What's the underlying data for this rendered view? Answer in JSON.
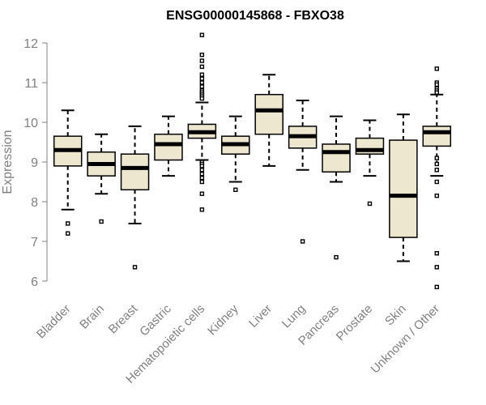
{
  "chart_data": {
    "type": "box",
    "title": "ENSG00000145868 - FBXO38",
    "xlabel": "",
    "ylabel": "Expression",
    "ylim": [
      5.8,
      12.3
    ],
    "yticks": [
      6,
      7,
      8,
      9,
      10,
      11,
      12
    ],
    "grid": false,
    "legend": "none",
    "box_fill": "#ede7cf",
    "outlier_color": "#000000",
    "categories": [
      "Bladder",
      "Brain",
      "Breast",
      "Gastric",
      "Hematopoietic cells",
      "Kidney",
      "Liver",
      "Lung",
      "Pancreas",
      "Prostate",
      "Skin",
      "Unknown / Other"
    ],
    "boxes": [
      {
        "category": "Bladder",
        "whisker_low": 7.8,
        "q1": 8.9,
        "median": 9.3,
        "q3": 9.65,
        "whisker_high": 10.3,
        "outliers": [
          7.45,
          7.2
        ]
      },
      {
        "category": "Brain",
        "whisker_low": 8.2,
        "q1": 8.65,
        "median": 8.95,
        "q3": 9.25,
        "whisker_high": 9.7,
        "outliers": [
          7.5
        ]
      },
      {
        "category": "Breast",
        "whisker_low": 7.45,
        "q1": 8.3,
        "median": 8.85,
        "q3": 9.2,
        "whisker_high": 9.9,
        "outliers": [
          6.35
        ]
      },
      {
        "category": "Gastric",
        "whisker_low": 8.65,
        "q1": 9.05,
        "median": 9.45,
        "q3": 9.7,
        "whisker_high": 10.15,
        "outliers": []
      },
      {
        "category": "Hematopoietic cells",
        "whisker_low": 9.05,
        "q1": 9.6,
        "median": 9.75,
        "q3": 9.95,
        "whisker_high": 10.5,
        "outliers": [
          12.2,
          11.7,
          11.55,
          11.4,
          11.2,
          11.1,
          11.0,
          10.9,
          10.8,
          10.75,
          10.7,
          10.65,
          10.6,
          9.0,
          8.95,
          8.9,
          8.8,
          8.7,
          8.6,
          8.5,
          8.2,
          7.8
        ]
      },
      {
        "category": "Kidney",
        "whisker_low": 8.5,
        "q1": 9.2,
        "median": 9.45,
        "q3": 9.65,
        "whisker_high": 10.15,
        "outliers": [
          8.3
        ]
      },
      {
        "category": "Liver",
        "whisker_low": 8.9,
        "q1": 9.7,
        "median": 10.3,
        "q3": 10.7,
        "whisker_high": 11.2,
        "outliers": []
      },
      {
        "category": "Lung",
        "whisker_low": 8.8,
        "q1": 9.35,
        "median": 9.65,
        "q3": 9.9,
        "whisker_high": 10.55,
        "outliers": [
          7.0
        ]
      },
      {
        "category": "Pancreas",
        "whisker_low": 8.5,
        "q1": 8.75,
        "median": 9.25,
        "q3": 9.45,
        "whisker_high": 10.15,
        "outliers": [
          6.6
        ]
      },
      {
        "category": "Prostate",
        "whisker_low": 8.65,
        "q1": 9.2,
        "median": 9.3,
        "q3": 9.6,
        "whisker_high": 10.05,
        "outliers": [
          7.95
        ]
      },
      {
        "category": "Skin",
        "whisker_low": 6.5,
        "q1": 7.1,
        "median": 8.15,
        "q3": 9.55,
        "whisker_high": 10.2,
        "outliers": []
      },
      {
        "category": "Unknown / Other",
        "whisker_low": 8.65,
        "q1": 9.4,
        "median": 9.75,
        "q3": 9.9,
        "whisker_high": 10.7,
        "outliers": [
          11.35,
          11.0,
          10.95,
          10.85,
          10.8,
          10.75,
          9.1,
          8.95,
          8.8,
          8.5,
          8.15,
          6.7,
          6.35,
          5.85
        ]
      }
    ]
  }
}
